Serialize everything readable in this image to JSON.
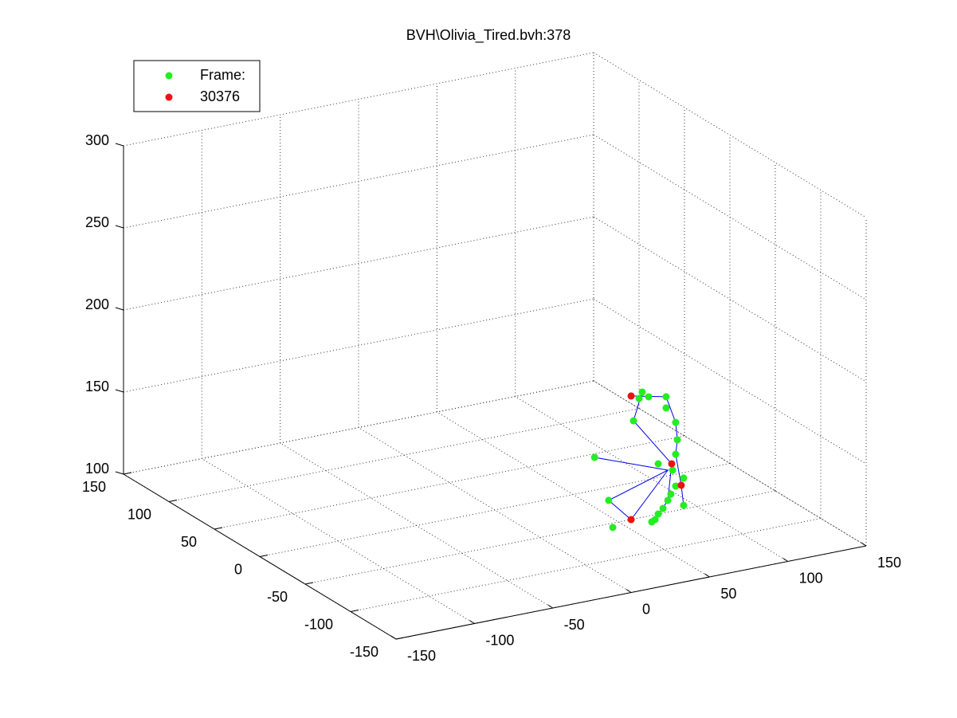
{
  "chart_data": {
    "type": "scatter",
    "title": "BVH\\Olivia_Tired.bvh:378",
    "xlim": [
      -150,
      150
    ],
    "xticks": [
      -150,
      -100,
      -50,
      0,
      50,
      100,
      150
    ],
    "ylim": [
      -150,
      150
    ],
    "yticks": [
      -150,
      -100,
      -50,
      0,
      50,
      100,
      150
    ],
    "zlim": [
      100,
      300
    ],
    "zticks": [
      100,
      150,
      200,
      250,
      300
    ],
    "grid": true,
    "legend": "northwest",
    "series": [
      {
        "name": "Frame:",
        "color": "#22ee22",
        "mode": "markers",
        "x": [
          55.0,
          53.5,
          58.1,
          66.5,
          66.5,
          71.1,
          50.8,
          71.9,
          71.1,
          62.7,
          69.6,
          74.9,
          71.1,
          68.8,
          67.3,
          74.9,
          38.9,
          32.1,
          40.9,
          61.2,
          62.7,
          65.0,
          59.6
        ],
        "y": [
          -67.3,
          -66.5,
          -69.1,
          -73.8,
          -73.8,
          -76.4,
          -65.0,
          -76.9,
          -76.4,
          -71.7,
          -75.6,
          -78.6,
          -76.4,
          -75.1,
          -74.3,
          -78.6,
          -58.2,
          -54.4,
          -59.3,
          -70.8,
          -71.7,
          -73.0,
          -69.9
        ],
        "z": [
          184.0,
          180.1,
          181.1,
          181.1,
          174.3,
          165.5,
          166.5,
          154.9,
          146.1,
          140.3,
          136.4,
          131.6,
          126.7,
          121.8,
          118.0,
          115.0,
          118.0,
          144.2,
          101.5,
          106.3,
          109.7,
          113.1,
          104.9
        ]
      },
      {
        "name": "30376",
        "color": "#ee1111",
        "mode": "markers",
        "x": [
          49.7,
          69.2,
          73.8,
          49.7
        ],
        "y": [
          -64.3,
          -75.3,
          -77.9,
          -64.3
        ],
        "z": [
          181.6,
          140.3,
          127.2,
          106.3
        ]
      },
      {
        "color": "#0000ee",
        "mode": "lines",
        "x": [
          49.7,
          66.5,
          71.1,
          71.9,
          71.1,
          73.8,
          74.9,
          null,
          55.0,
          50.8,
          69.2,
          67.3,
          61.2,
          null,
          32.1,
          67.3,
          38.9,
          49.7,
          67.3
        ],
        "y": [
          -64.3,
          -73.8,
          -76.4,
          -76.9,
          -76.4,
          -77.9,
          -78.6,
          null,
          -67.3,
          -65.0,
          -75.3,
          -74.3,
          -70.8,
          null,
          -54.4,
          -74.3,
          -58.2,
          -64.3,
          -74.3
        ],
        "z": [
          181.6,
          181.1,
          165.5,
          154.9,
          146.1,
          127.2,
          115.0,
          null,
          184.0,
          166.5,
          140.3,
          118.0,
          106.3,
          null,
          144.2,
          136.4,
          118.0,
          106.3,
          136.4
        ]
      }
    ]
  }
}
